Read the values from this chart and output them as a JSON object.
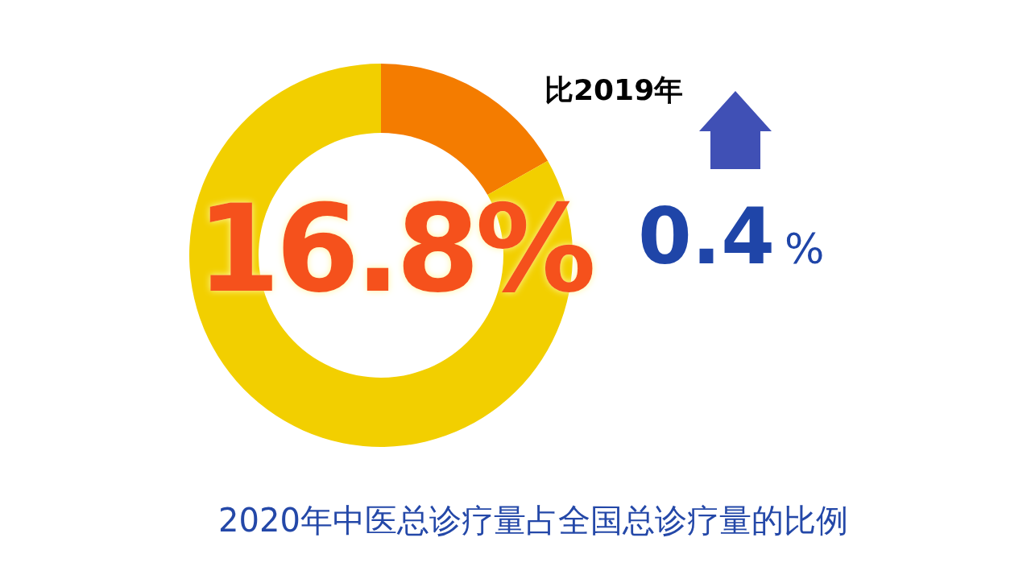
{
  "chart_data": {
    "type": "donut",
    "title": "2020年中医总诊疗量占全国总诊疗量的比例",
    "categories": [
      null,
      null
    ],
    "values": [
      16.8,
      83.2
    ],
    "colors": [
      "#f47c00",
      "#f2cf00"
    ],
    "value_labels": [
      "16.8%",
      null
    ],
    "annotations": [
      "比2019年",
      "0.4%"
    ]
  }
}
